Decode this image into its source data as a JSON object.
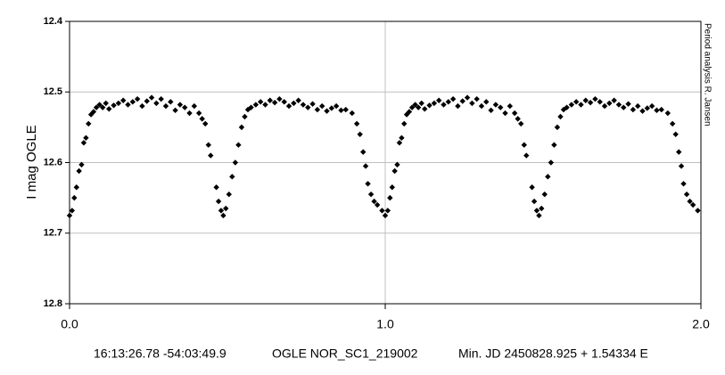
{
  "chart_data": {
    "type": "scatter",
    "y_label": "I mag OGLE",
    "side_note": "Period analysis   R. Jansen",
    "footer": [
      "16:13:26.78 -54:03:49.9",
      "OGLE NOR_SC1_219002",
      "Min. JD 2450828.925 + 1.54334 E"
    ],
    "color": "#000000",
    "grid": true,
    "y_inverted": true,
    "xlim": [
      0,
      2
    ],
    "xticks": [
      {
        "value": 0,
        "label": "0.0"
      },
      {
        "value": 1,
        "label": "1.0"
      },
      {
        "value": 2,
        "label": "2.0"
      }
    ],
    "ylim": [
      12.4,
      12.8
    ],
    "yticks": [
      12.4,
      12.5,
      12.6,
      12.7,
      12.8
    ],
    "x": [
      0.0,
      0.008,
      0.015,
      0.022,
      0.03,
      0.038,
      0.045,
      0.052,
      0.06,
      0.068,
      0.076,
      0.085,
      0.095,
      0.105,
      0.115,
      0.125,
      0.14,
      0.155,
      0.17,
      0.185,
      0.2,
      0.215,
      0.23,
      0.245,
      0.26,
      0.275,
      0.29,
      0.305,
      0.32,
      0.335,
      0.35,
      0.365,
      0.38,
      0.395,
      0.41,
      0.42,
      0.43,
      0.44,
      0.447,
      0.465,
      0.472,
      0.48,
      0.487,
      0.495,
      0.505,
      0.515,
      0.525,
      0.535,
      0.545,
      0.555,
      0.565,
      0.575,
      0.59,
      0.605,
      0.62,
      0.635,
      0.65,
      0.665,
      0.68,
      0.695,
      0.71,
      0.725,
      0.74,
      0.755,
      0.77,
      0.785,
      0.8,
      0.815,
      0.83,
      0.845,
      0.86,
      0.875,
      0.895,
      0.91,
      0.92,
      0.93,
      0.938,
      0.945,
      0.955,
      0.965,
      0.975,
      0.99,
      1.0,
      1.008,
      1.015,
      1.022,
      1.03,
      1.038,
      1.045,
      1.052,
      1.06,
      1.068,
      1.076,
      1.085,
      1.095,
      1.105,
      1.115,
      1.125,
      1.14,
      1.155,
      1.17,
      1.185,
      1.2,
      1.215,
      1.23,
      1.245,
      1.26,
      1.275,
      1.29,
      1.305,
      1.32,
      1.335,
      1.35,
      1.365,
      1.38,
      1.395,
      1.41,
      1.42,
      1.43,
      1.44,
      1.447,
      1.465,
      1.472,
      1.48,
      1.487,
      1.495,
      1.505,
      1.515,
      1.525,
      1.535,
      1.545,
      1.555,
      1.565,
      1.575,
      1.59,
      1.605,
      1.62,
      1.635,
      1.65,
      1.665,
      1.68,
      1.695,
      1.71,
      1.725,
      1.74,
      1.755,
      1.77,
      1.785,
      1.8,
      1.815,
      1.83,
      1.845,
      1.86,
      1.875,
      1.895,
      1.91,
      1.92,
      1.93,
      1.938,
      1.945,
      1.955,
      1.965,
      1.975,
      1.99
    ],
    "values": [
      12.675,
      12.668,
      12.65,
      12.635,
      12.612,
      12.603,
      12.572,
      12.565,
      12.545,
      12.532,
      12.528,
      12.522,
      12.518,
      12.522,
      12.516,
      12.524,
      12.519,
      12.516,
      12.512,
      12.518,
      12.514,
      12.51,
      12.52,
      12.513,
      12.508,
      12.516,
      12.51,
      12.52,
      12.514,
      12.526,
      12.518,
      12.522,
      12.53,
      12.52,
      12.53,
      12.538,
      12.545,
      12.575,
      12.59,
      12.635,
      12.655,
      12.668,
      12.675,
      12.665,
      12.645,
      12.62,
      12.6,
      12.575,
      12.55,
      12.535,
      12.525,
      12.522,
      12.518,
      12.514,
      12.518,
      12.512,
      12.515,
      12.51,
      12.514,
      12.52,
      12.516,
      12.512,
      12.518,
      12.522,
      12.517,
      12.525,
      12.52,
      12.527,
      12.523,
      12.52,
      12.526,
      12.525,
      12.53,
      12.545,
      12.56,
      12.585,
      12.605,
      12.63,
      12.645,
      12.655,
      12.66,
      12.668,
      12.675,
      12.668,
      12.65,
      12.635,
      12.612,
      12.603,
      12.572,
      12.565,
      12.545,
      12.532,
      12.528,
      12.522,
      12.518,
      12.522,
      12.516,
      12.524,
      12.519,
      12.516,
      12.512,
      12.518,
      12.514,
      12.51,
      12.52,
      12.513,
      12.508,
      12.516,
      12.51,
      12.52,
      12.514,
      12.526,
      12.518,
      12.522,
      12.53,
      12.52,
      12.53,
      12.538,
      12.545,
      12.575,
      12.59,
      12.635,
      12.655,
      12.668,
      12.675,
      12.665,
      12.645,
      12.62,
      12.6,
      12.575,
      12.55,
      12.535,
      12.525,
      12.522,
      12.518,
      12.514,
      12.518,
      12.512,
      12.515,
      12.51,
      12.514,
      12.52,
      12.516,
      12.512,
      12.518,
      12.522,
      12.517,
      12.525,
      12.52,
      12.527,
      12.523,
      12.52,
      12.526,
      12.525,
      12.53,
      12.545,
      12.56,
      12.585,
      12.605,
      12.63,
      12.645,
      12.655,
      12.66,
      12.668
    ]
  }
}
